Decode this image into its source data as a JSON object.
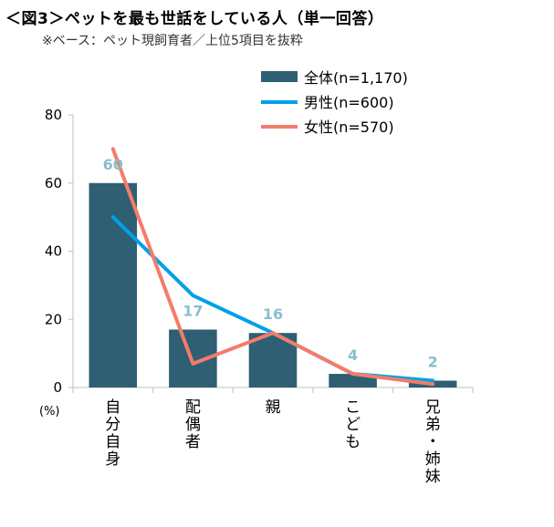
{
  "chart_data": {
    "type": "bar",
    "title": "＜図3＞ペットを最も世話をしている人（単一回答）",
    "subtitle": "※ベース：ペット現飼育者／上位5項目を抜粋",
    "unit_label": "(%)",
    "categories": [
      "自分自身",
      "配偶者",
      "親",
      "こども",
      "兄弟・姉妹"
    ],
    "ylim": [
      0,
      80
    ],
    "yticks": [
      0,
      20,
      40,
      60,
      80
    ],
    "series": [
      {
        "name": "全体(n=1,170)",
        "kind": "bar",
        "color": "#2e5f72",
        "values": [
          60,
          17,
          16,
          4,
          2
        ],
        "labels": [
          "60",
          "17",
          "16",
          "4",
          "2"
        ]
      },
      {
        "name": "男性(n=600)",
        "kind": "line",
        "color": "#00a0e9",
        "values": [
          50,
          27,
          16,
          4,
          2
        ]
      },
      {
        "name": "女性(n=570)",
        "kind": "line",
        "color": "#f47c6a",
        "values": [
          70,
          7,
          16,
          4,
          1
        ]
      }
    ]
  }
}
